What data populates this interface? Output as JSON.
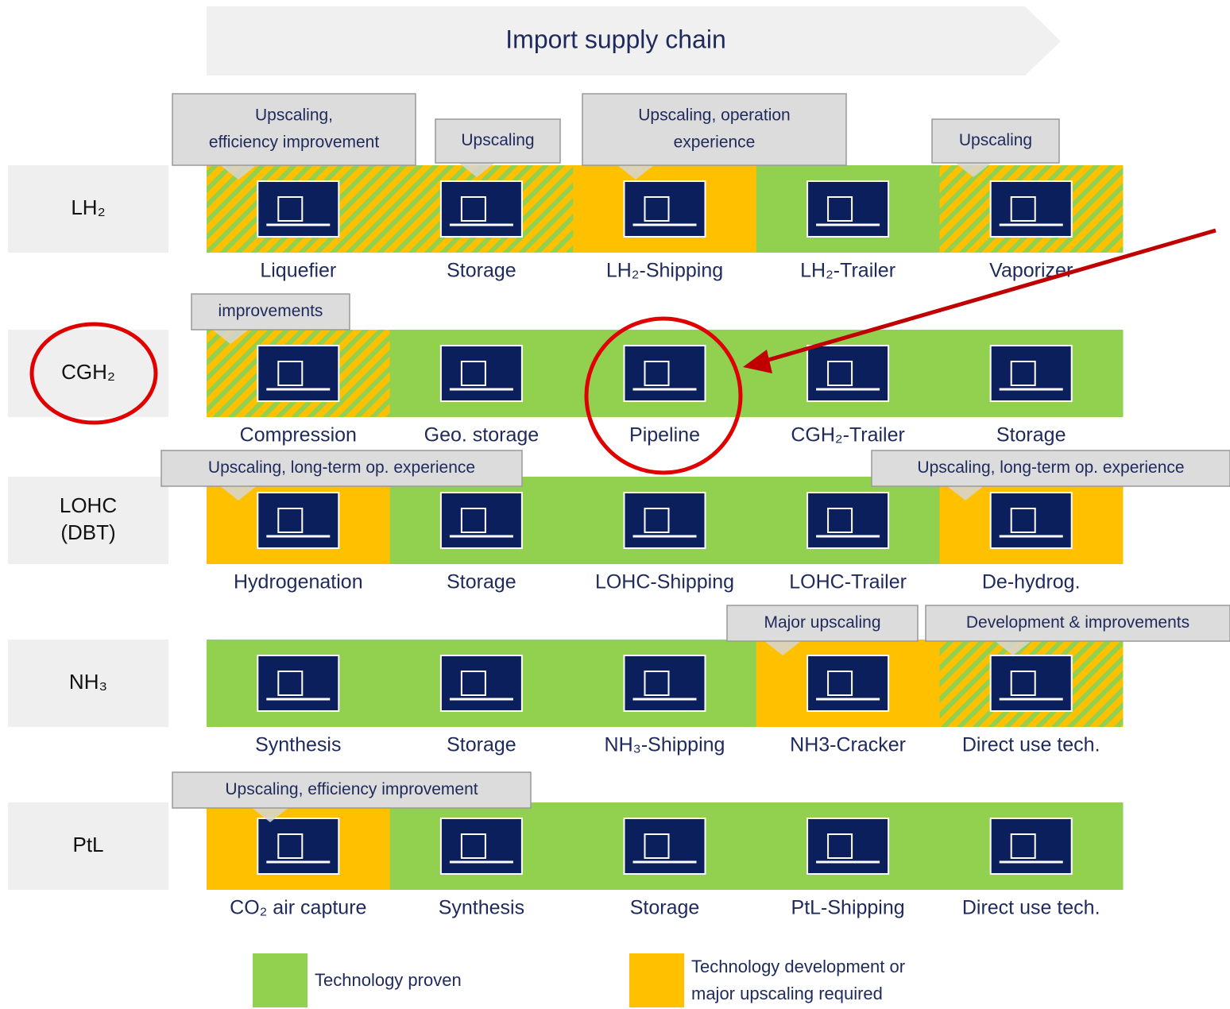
{
  "header": {
    "title": "Import supply chain"
  },
  "rows": [
    {
      "label": [
        "LH₂"
      ],
      "cells": [
        {
          "label": "Liquefier",
          "color": "#ffc000",
          "hatched": true
        },
        {
          "label": "Storage",
          "color": "#ffc000",
          "hatched": true
        },
        {
          "label": "LH₂-Shipping",
          "color": "#ffc000",
          "hatched": false
        },
        {
          "label": "LH₂-Trailer",
          "color": "#92d050",
          "hatched": false
        },
        {
          "label": "Vaporizer",
          "color": "#ffc000",
          "hatched": true
        }
      ],
      "callouts": [
        {
          "lines": [
            "Upscaling,",
            "efficiency improvement"
          ],
          "cell": 0
        },
        {
          "lines": [
            "Upscaling"
          ],
          "cell": 1
        },
        {
          "lines": [
            "Upscaling, operation",
            "experience"
          ],
          "cell": 2
        },
        {
          "lines": [
            "Upscaling"
          ],
          "cell": 4
        }
      ]
    },
    {
      "label": [
        "CGH₂"
      ],
      "cells": [
        {
          "label": "Compression",
          "color": "#ffc000",
          "hatched": true
        },
        {
          "label": "Geo. storage",
          "color": "#92d050",
          "hatched": false
        },
        {
          "label": "Pipeline",
          "color": "#92d050",
          "hatched": false
        },
        {
          "label": "CGH₂-Trailer",
          "color": "#92d050",
          "hatched": false
        },
        {
          "label": "Storage",
          "color": "#92d050",
          "hatched": false
        }
      ],
      "callouts": [
        {
          "lines": [
            "improvements"
          ],
          "cell": 0
        }
      ]
    },
    {
      "label": [
        "LOHC",
        "(DBT)"
      ],
      "cells": [
        {
          "label": "Hydrogenation",
          "color": "#ffc000",
          "hatched": false
        },
        {
          "label": "Storage",
          "color": "#92d050",
          "hatched": false
        },
        {
          "label": "LOHC-Shipping",
          "color": "#92d050",
          "hatched": false
        },
        {
          "label": "LOHC-Trailer",
          "color": "#92d050",
          "hatched": false
        },
        {
          "label": "De-hydrog.",
          "color": "#ffc000",
          "hatched": false
        }
      ],
      "callouts": [
        {
          "lines": [
            "Upscaling, long-term op. experience"
          ],
          "cell": 0
        },
        {
          "lines": [
            "Upscaling, long-term op. experience"
          ],
          "cell": 4
        }
      ]
    },
    {
      "label": [
        "NH₃"
      ],
      "cells": [
        {
          "label": "Synthesis",
          "color": "#92d050",
          "hatched": false
        },
        {
          "label": "Storage",
          "color": "#92d050",
          "hatched": false
        },
        {
          "label": "NH₃-Shipping",
          "color": "#92d050",
          "hatched": false
        },
        {
          "label": "NH3-Cracker",
          "color": "#ffc000",
          "hatched": false
        },
        {
          "label": "Direct use tech.",
          "color": "#ffc000",
          "hatched": true
        }
      ],
      "callouts": [
        {
          "lines": [
            "Major upscaling"
          ],
          "cell": 3
        },
        {
          "lines": [
            "Development & improvements"
          ],
          "cell": 4
        }
      ]
    },
    {
      "label": [
        "PtL"
      ],
      "cells": [
        {
          "label": "CO₂ air capture",
          "color": "#ffc000",
          "hatched": false
        },
        {
          "label": "Synthesis",
          "color": "#92d050",
          "hatched": false
        },
        {
          "label": "Storage",
          "color": "#92d050",
          "hatched": false
        },
        {
          "label": "PtL-Shipping",
          "color": "#92d050",
          "hatched": false
        },
        {
          "label": "Direct use tech.",
          "color": "#92d050",
          "hatched": false
        }
      ],
      "callouts": [
        {
          "lines": [
            "Upscaling, efficiency improvement"
          ],
          "cell": 0
        }
      ]
    }
  ],
  "legend": [
    {
      "lines": [
        "Technology proven"
      ],
      "color": "#92d050"
    },
    {
      "lines": [
        "Technology development or",
        "major upscaling required"
      ],
      "color": "#ffc000"
    }
  ]
}
